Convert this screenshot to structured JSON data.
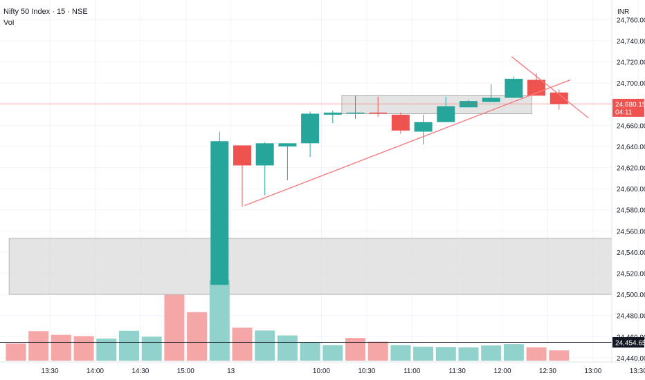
{
  "header": {
    "title": "Nifty 50 Index · 15 · NSE",
    "volume_label": "Vol",
    "currency": "INR"
  },
  "chart_data": {
    "type": "candlestick",
    "y_ticks": [
      "24,760.00",
      "24,740.00",
      "24,720.00",
      "24,700.00",
      "24,660.00",
      "24,640.00",
      "24,620.00",
      "24,600.00",
      "24,580.00",
      "24,560.00",
      "24,540.00",
      "24,520.00",
      "24,500.00",
      "24,480.00",
      "24,460.00",
      "24,440.00"
    ],
    "y_tick_values": [
      24760,
      24740,
      24720,
      24700,
      24660,
      24640,
      24620,
      24600,
      24580,
      24560,
      24540,
      24520,
      24500,
      24480,
      24460,
      24440
    ],
    "ylim": [
      24436,
      24772
    ],
    "x_ticks": [
      {
        "label": "13:30",
        "bar": 1.5
      },
      {
        "label": "14:00",
        "bar": 3.5
      },
      {
        "label": "14:30",
        "bar": 5.5
      },
      {
        "label": "15:00",
        "bar": 7.5
      },
      {
        "label": "13",
        "bar": 9.5
      },
      {
        "label": "10:00",
        "bar": 13.5
      },
      {
        "label": "10:30",
        "bar": 15.5
      },
      {
        "label": "11:00",
        "bar": 17.5
      },
      {
        "label": "11:30",
        "bar": 19.5
      },
      {
        "label": "12:00",
        "bar": 21.5
      },
      {
        "label": "12:30",
        "bar": 23.5
      },
      {
        "label": "13:00",
        "bar": 25.5
      },
      {
        "label": "13:30",
        "bar": 27.5
      }
    ],
    "candles": [
      {
        "o": 24509,
        "h": 24654,
        "l": 24509,
        "c": 24645
      },
      {
        "o": 24641,
        "h": 24641,
        "l": 24583,
        "c": 24622
      },
      {
        "o": 24622,
        "h": 24644,
        "l": 24594,
        "c": 24643
      },
      {
        "o": 24640,
        "h": 24643,
        "l": 24608,
        "c": 24643
      },
      {
        "o": 24643,
        "h": 24673,
        "l": 24630,
        "c": 24671
      },
      {
        "o": 24670,
        "h": 24674,
        "l": 24662,
        "c": 24672
      },
      {
        "o": 24672,
        "h": 24688,
        "l": 24666,
        "c": 24672
      },
      {
        "o": 24672,
        "h": 24687,
        "l": 24668,
        "c": 24671
      },
      {
        "o": 24670,
        "h": 24672,
        "l": 24652,
        "c": 24655
      },
      {
        "o": 24654,
        "h": 24670,
        "l": 24642,
        "c": 24663
      },
      {
        "o": 24663,
        "h": 24687,
        "l": 24663,
        "c": 24678
      },
      {
        "o": 24677,
        "h": 24684,
        "l": 24677,
        "c": 24683
      },
      {
        "o": 24682,
        "h": 24699,
        "l": 24682,
        "c": 24686
      },
      {
        "o": 24686,
        "h": 24706,
        "l": 24686,
        "c": 24704
      },
      {
        "o": 24703,
        "h": 24709,
        "l": 24688,
        "c": 24688
      },
      {
        "o": 24691,
        "h": 24694,
        "l": 24675,
        "c": 24680
      }
    ],
    "candle_start_bar": 9,
    "volume": [
      {
        "bar": 0,
        "v": 5.5,
        "up": false
      },
      {
        "bar": 1,
        "v": 9.5,
        "up": false
      },
      {
        "bar": 2,
        "v": 8.3,
        "up": false
      },
      {
        "bar": 3,
        "v": 7.9,
        "up": false
      },
      {
        "bar": 4,
        "v": 7.1,
        "up": true
      },
      {
        "bar": 5,
        "v": 9.6,
        "up": true
      },
      {
        "bar": 6,
        "v": 7.7,
        "up": true
      },
      {
        "bar": 7,
        "v": 21.2,
        "up": false
      },
      {
        "bar": 8,
        "v": 15.6,
        "up": false
      },
      {
        "bar": 9,
        "v": 25.9,
        "up": true
      },
      {
        "bar": 10,
        "v": 10.6,
        "up": false
      },
      {
        "bar": 11,
        "v": 9.7,
        "up": true
      },
      {
        "bar": 12,
        "v": 8.1,
        "up": true
      },
      {
        "bar": 13,
        "v": 6.0,
        "up": true
      },
      {
        "bar": 14,
        "v": 5.0,
        "up": true
      },
      {
        "bar": 15,
        "v": 7.3,
        "up": false
      },
      {
        "bar": 16,
        "v": 6.1,
        "up": false
      },
      {
        "bar": 17,
        "v": 5.0,
        "up": true
      },
      {
        "bar": 18,
        "v": 4.5,
        "up": true
      },
      {
        "bar": 19,
        "v": 4.4,
        "up": true
      },
      {
        "bar": 20,
        "v": 4.3,
        "up": true
      },
      {
        "bar": 21,
        "v": 4.9,
        "up": true
      },
      {
        "bar": 22,
        "v": 5.3,
        "up": true
      },
      {
        "bar": 23,
        "v": 4.3,
        "up": false
      },
      {
        "bar": 24,
        "v": 3.3,
        "up": false
      }
    ],
    "zones": [
      {
        "bar_from": -0.3,
        "bar_to": 26.6,
        "y_from": 24553,
        "y_to": 24500
      },
      {
        "bar_from": 14.4,
        "bar_to": 22.8,
        "y_from": 24688,
        "y_to": 24671
      }
    ],
    "trend_lines": [
      {
        "bar1": 10.1,
        "y1": 24584,
        "bar2": 24.5,
        "y2": 24703
      },
      {
        "bar1": 21.9,
        "y1": 24725,
        "bar2": 25.3,
        "y2": 24667
      }
    ],
    "price_lines": [
      {
        "value": 24680.15,
        "label": "24,680.15",
        "sub": "04:11",
        "color": "#ef5350"
      },
      {
        "value": 24454.65,
        "label": "24,454.65",
        "color": "#131722"
      }
    ],
    "colors": {
      "up": "#26a69a",
      "down": "#ef5350",
      "vol_up": "#92d2cc",
      "vol_down": "#f5a6a6",
      "trend": "#f77c80",
      "zone": "#d9d9d9",
      "grid": "#f0f3fa"
    }
  }
}
